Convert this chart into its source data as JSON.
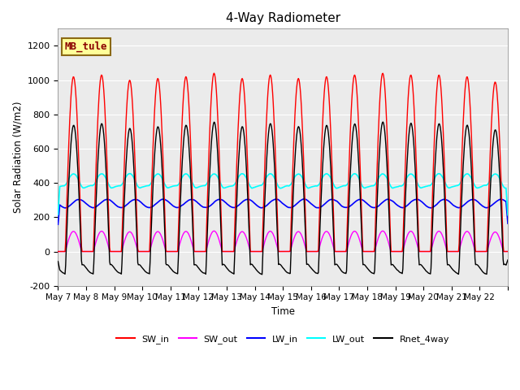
{
  "title": "4-Way Radiometer",
  "ylabel": "Solar Radiation (W/m2)",
  "xlabel": "Time",
  "annotation_text": "MB_tule",
  "annotation_bg": "#FFFF99",
  "annotation_border": "#8B6914",
  "ylim": [
    -200,
    1300
  ],
  "yticks": [
    -200,
    0,
    200,
    400,
    600,
    800,
    1000,
    1200
  ],
  "n_days": 16,
  "xtick_labels": [
    "May 7",
    "May 8",
    "May 9",
    "May 10",
    "May 11",
    "May 12",
    "May 13",
    "May 14",
    "May 15",
    "May 16",
    "May 17",
    "May 18",
    "May 19",
    "May 20",
    "May 21",
    "May 22",
    ""
  ],
  "SW_in_peak": 1020,
  "LW_in_base": 280,
  "LW_out_base": 375,
  "colors": {
    "SW_in": "#FF0000",
    "SW_out": "#FF00FF",
    "LW_in": "#0000FF",
    "LW_out": "#00FFFF",
    "Rnet_4way": "#000000"
  },
  "plot_bg": "#EBEBEB",
  "grid_color": "#FFFFFF"
}
